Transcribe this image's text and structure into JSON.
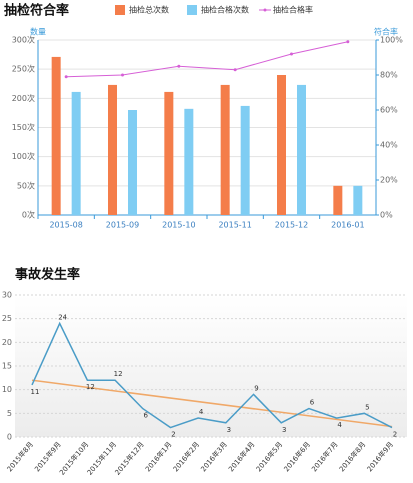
{
  "chart_data": [
    {
      "type": "bar",
      "title": "抽检符合率",
      "ylabel": "数量",
      "y2label": "符合率",
      "categories": [
        "2015-08",
        "2015-09",
        "2015-10",
        "2015-11",
        "2015-12",
        "2016-01"
      ],
      "series": [
        {
          "name": "抽检总次数",
          "color": "#f47d4a",
          "values": [
            271,
            223,
            211,
            223,
            240,
            50
          ]
        },
        {
          "name": "抽检合格次数",
          "color": "#7fcdf3",
          "values": [
            211,
            180,
            182,
            187,
            223,
            50
          ]
        },
        {
          "name": "抽检合格率",
          "color": "#d65fd6",
          "type": "line",
          "axis": "y2",
          "values": [
            79,
            80,
            85,
            83,
            92,
            99
          ]
        }
      ],
      "ylim": [
        0,
        300
      ],
      "yticks": [
        {
          "value": 0,
          "label": "0次"
        },
        {
          "value": 50,
          "label": "50次"
        },
        {
          "value": 100,
          "label": "100次"
        },
        {
          "value": 150,
          "label": "150次"
        },
        {
          "value": 200,
          "label": "200次"
        },
        {
          "value": 250,
          "label": "250次"
        },
        {
          "value": 300,
          "label": "300次"
        }
      ],
      "y2lim": [
        0,
        100
      ],
      "y2ticks": [
        {
          "value": 0,
          "label": "0%"
        },
        {
          "value": 20,
          "label": "20%"
        },
        {
          "value": 40,
          "label": "40%"
        },
        {
          "value": 60,
          "label": "60%"
        },
        {
          "value": 80,
          "label": "80%"
        },
        {
          "value": 100,
          "label": "100%"
        }
      ],
      "grid": true
    },
    {
      "type": "line",
      "title": "事故发生率",
      "categories": [
        "2015年8月",
        "2015年9月",
        "2015年10月",
        "2015年11月",
        "2015年12月",
        "2016年1月",
        "2016年2月",
        "2016年3月",
        "2016年4月",
        "2016年5月",
        "2016年6月",
        "2016年7月",
        "2016年8月",
        "2016年9月"
      ],
      "series": [
        {
          "color": "#4a9cc7",
          "values": [
            11,
            24,
            12,
            12,
            6,
            2,
            4,
            3,
            9,
            3,
            6,
            4,
            5,
            2
          ]
        }
      ],
      "trend": {
        "color": "#f0a868",
        "values": [
          12,
          2.2
        ]
      },
      "ylim": [
        0,
        30
      ],
      "yticks": [
        0,
        5,
        10,
        15,
        20,
        25,
        30
      ],
      "grid": true
    }
  ]
}
